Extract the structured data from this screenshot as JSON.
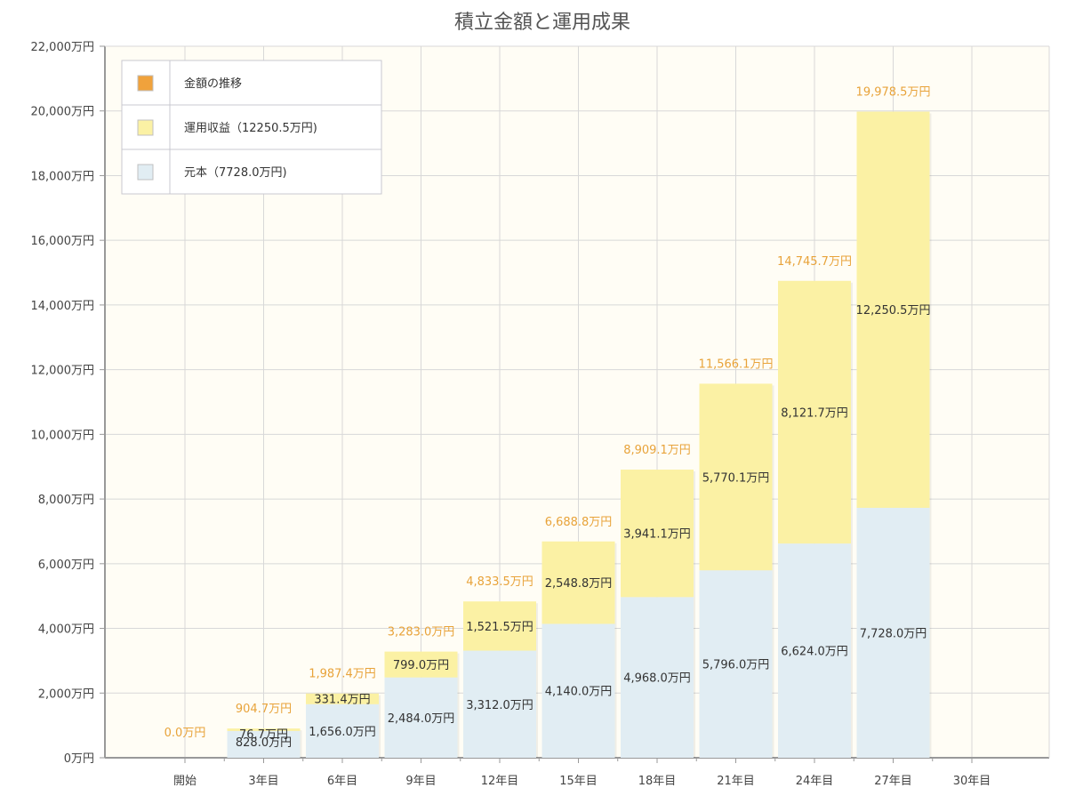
{
  "chart_data": {
    "type": "bar",
    "stacked": true,
    "title": "積立金額と運用成果",
    "categories": [
      "開始",
      "3年目",
      "6年目",
      "9年目",
      "12年目",
      "15年目",
      "18年目",
      "21年目",
      "24年目",
      "27年目",
      "30年目"
    ],
    "y_tick_labels": [
      "0万円",
      "2,000万円",
      "4,000万円",
      "6,000万円",
      "8,000万円",
      "10,000万円",
      "12,000万円",
      "14,000万円",
      "16,000万円",
      "18,000万円",
      "20,000万円",
      "22,000万円"
    ],
    "ylim": [
      0,
      22000
    ],
    "y_tick_step": 2000,
    "grid": true,
    "legend_position": "top-left",
    "legend": [
      {
        "label": "金額の推移",
        "color": "#f0a23c"
      },
      {
        "label": "運用収益（12250.5万円)",
        "color": "#fbf1a4"
      },
      {
        "label": "元本（7728.0万円)",
        "color": "#e1edf3"
      }
    ],
    "series": [
      {
        "name": "元本（7728.0万円)",
        "color": "#e1edf3",
        "values": [
          null,
          828.0,
          1656.0,
          2484.0,
          3312.0,
          4140.0,
          4968.0,
          5796.0,
          6624.0,
          7728.0,
          null
        ],
        "labels": [
          null,
          "828.0万円",
          "1,656.0万円",
          "2,484.0万円",
          "3,312.0万円",
          "4,140.0万円",
          "4,968.0万円",
          "5,796.0万円",
          "6,624.0万円",
          "7,728.0万円",
          null
        ]
      },
      {
        "name": "運用収益（12250.5万円)",
        "color": "#fbf1a4",
        "values": [
          null,
          76.7,
          331.4,
          799.0,
          1521.5,
          2548.8,
          3941.1,
          5770.1,
          8121.7,
          12250.5,
          null
        ],
        "labels": [
          null,
          "76.7万円",
          "331.4万円",
          "799.0万円",
          "1,521.5万円",
          "2,548.8万円",
          "3,941.1万円",
          "5,770.1万円",
          "8,121.7万円",
          "12,250.5万円",
          null
        ]
      }
    ],
    "totals": [
      0.0,
      904.7,
      1987.4,
      3283.0,
      4833.5,
      6688.8,
      8909.1,
      11566.1,
      14745.7,
      19978.5,
      null
    ],
    "total_labels": [
      "0.0万円",
      "904.7万円",
      "1,987.4万円",
      "3,283.0万円",
      "4,833.5万円",
      "6,688.8万円",
      "8,909.1万円",
      "11,566.1万円",
      "14,745.7万円",
      "19,978.5万円",
      null
    ],
    "colors": {
      "plot_background": "#fffdf5",
      "grid": "#d8d8d8",
      "axis": "#999999",
      "total_label": "#e8a33a"
    }
  }
}
